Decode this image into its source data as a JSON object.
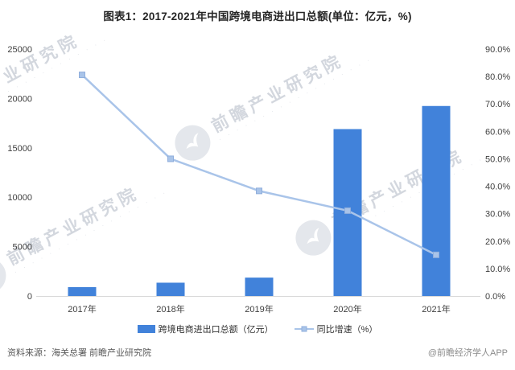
{
  "title": "图表1：2017-2021年中国跨境电商进出口总额(单位：亿元，%)",
  "watermark": {
    "text": "前瞻产业研究院",
    "subtext": "· · · · · · · · · · · · · · · · · ·"
  },
  "legend": {
    "bar_label": "跨境电商进出口总额（亿元）",
    "line_label": "同比增速（%）"
  },
  "footer": {
    "source": "资料来源：海关总署 前瞻产业研究院",
    "brand": "@前瞻经济学人APP"
  },
  "colors": {
    "bar": "#4182DA",
    "line": "#A9C4E9",
    "marker_border": "#8FAEDC",
    "axis_line": "#D9D9D9",
    "tick_text": "#404040",
    "watermark": "#97A2B3"
  },
  "chart_data": {
    "type": "bar",
    "subtype": "combo-bar-line",
    "title": "图表1：2017-2021年中国跨境电商进出口总额(单位：亿元，%)",
    "categories": [
      "2017年",
      "2018年",
      "2019年",
      "2020年",
      "2021年"
    ],
    "series": [
      {
        "name": "跨境电商进出口总额（亿元）",
        "type": "bar",
        "axis": "left",
        "color": "#4182DA",
        "values": [
          902.4,
          1347,
          1862.1,
          16898.3,
          19237
        ]
      },
      {
        "name": "同比增速（%）",
        "type": "line",
        "axis": "right",
        "color": "#A9C4E9",
        "marker_color": "#8FAEDC",
        "values": [
          80.6,
          50.0,
          38.3,
          31.1,
          15.0
        ]
      }
    ],
    "left_axis": {
      "min": 0,
      "max": 25000,
      "step": 5000,
      "tick_labels": [
        "0",
        "5000",
        "10000",
        "15000",
        "20000",
        "25000"
      ]
    },
    "right_axis": {
      "min": 0,
      "max": 90,
      "step": 10,
      "tick_labels": [
        "0.0%",
        "10.0%",
        "20.0%",
        "30.0%",
        "40.0%",
        "50.0%",
        "60.0%",
        "70.0%",
        "80.0%",
        "90.0%"
      ]
    },
    "grid": false,
    "legend_position": "bottom"
  }
}
